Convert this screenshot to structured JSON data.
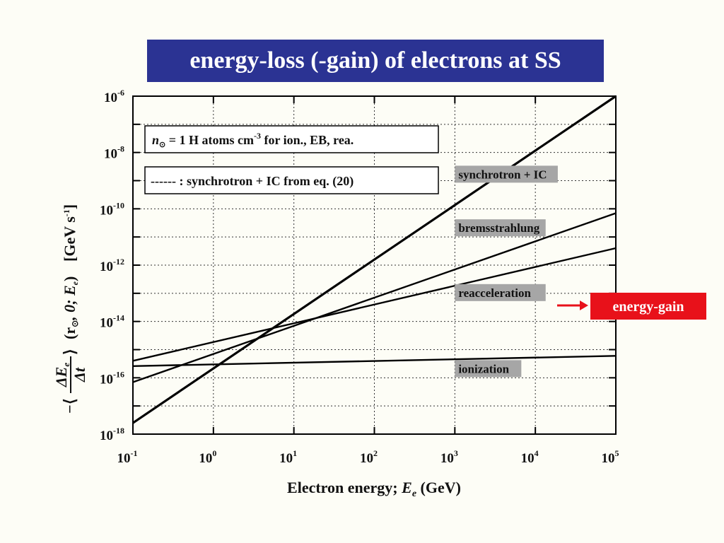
{
  "slide": {
    "title": "energy-loss (-gain) of electrons at SS"
  },
  "colors": {
    "title_bg": "#2b3393",
    "title_fg": "#ffffff",
    "label_bg": "#a6a6a6",
    "gain_bg": "#e8111a",
    "arrow": "#e8111a",
    "curve": "#000000"
  },
  "chart_data": {
    "type": "line",
    "log_x": true,
    "log_y": true,
    "xlim": [
      0.1,
      100000
    ],
    "ylim": [
      1e-18,
      1e-06
    ],
    "grid": true,
    "xlabel_text": "Electron energy;  ",
    "xlabel_var": "E",
    "xlabel_sub": "e",
    "xlabel_unit": " (GeV)",
    "ylabel_prefix": "−",
    "ylabel_frac_num": "ΔE",
    "ylabel_frac_num_sub": "e",
    "ylabel_frac_den": "Δt",
    "ylabel_args": "(r",
    "ylabel_args_sub": "⊙",
    "ylabel_args_rest": ", 0; E",
    "ylabel_args_sub2": "e",
    "ylabel_args_end": ")",
    "ylabel_unit": "[GeV s",
    "ylabel_unit_sup": "-1",
    "ylabel_unit_end": "]",
    "x_ticks": [
      {
        "value": 0.1,
        "base": "10",
        "exp": "-1"
      },
      {
        "value": 1,
        "base": "10",
        "exp": "0"
      },
      {
        "value": 10,
        "base": "10",
        "exp": "1"
      },
      {
        "value": 100,
        "base": "10",
        "exp": "2"
      },
      {
        "value": 1000,
        "base": "10",
        "exp": "3"
      },
      {
        "value": 10000,
        "base": "10",
        "exp": "4"
      },
      {
        "value": 100000,
        "base": "10",
        "exp": "5"
      }
    ],
    "y_ticks": [
      {
        "value": 1e-18,
        "base": "10",
        "exp": "-18"
      },
      {
        "value": 1e-16,
        "base": "10",
        "exp": "-16"
      },
      {
        "value": 1e-14,
        "base": "10",
        "exp": "-14"
      },
      {
        "value": 1e-12,
        "base": "10",
        "exp": "-12"
      },
      {
        "value": 1e-10,
        "base": "10",
        "exp": "-10"
      },
      {
        "value": 1e-08,
        "base": "10",
        "exp": "-8"
      },
      {
        "value": 1e-06,
        "base": "10",
        "exp": "-6"
      }
    ],
    "y_minor_grid": [
      1e-17,
      1e-15,
      1e-13,
      1e-11,
      1e-09,
      1e-07
    ],
    "series": [
      {
        "name": "synchrotron + IC",
        "x": [
          0.1,
          100000
        ],
        "y": [
          2.5e-18,
          1e-06
        ]
      },
      {
        "name": "bremsstrahlung",
        "x": [
          0.1,
          100000
        ],
        "y": [
          7e-17,
          7e-11
        ]
      },
      {
        "name": "reacceleration",
        "x": [
          0.1,
          100000
        ],
        "y": [
          4e-16,
          4e-12
        ]
      },
      {
        "name": "ionization",
        "x": [
          0.1,
          100000
        ],
        "y": [
          2.6e-16,
          6e-16
        ]
      }
    ],
    "curve_labels": [
      {
        "text": "synchrotron + IC",
        "x": 1000,
        "y": 1.6e-09
      },
      {
        "text": "bremsstrahlung",
        "x": 1000,
        "y": 2e-11
      },
      {
        "text": "reacceleration",
        "x": 1000,
        "y": 1e-13
      },
      {
        "text": "ionization",
        "x": 1000,
        "y": 2e-16
      }
    ],
    "legend": {
      "line1_prefix": "n",
      "line1_sub": "⊙",
      "line1_mid": " = 1 H atoms cm",
      "line1_sup": "-3",
      "line1_end": "  for ion., EB, rea.",
      "line2": "------ : synchrotron + IC from eq. (20)",
      "placement": "top-left"
    },
    "annotation": {
      "text": "energy-gain",
      "points_to": "reacceleration"
    }
  }
}
